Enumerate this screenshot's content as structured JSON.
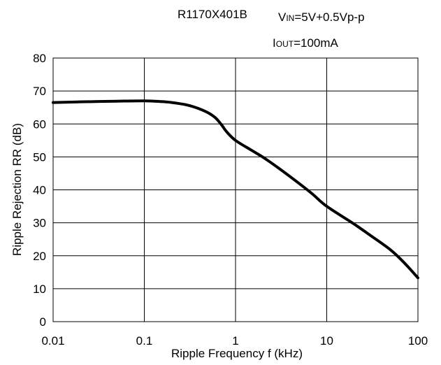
{
  "chart_data": {
    "type": "line",
    "x_scale": "log",
    "xlim": [
      0.01,
      100
    ],
    "ylim": [
      0,
      80
    ],
    "grid": true,
    "xlabel": "Ripple Frequency f (kHz)",
    "ylabel": "Ripple Rejection RR (dB)",
    "x_ticks": [
      0.01,
      0.1,
      1,
      10,
      100
    ],
    "x_tick_labels": [
      "0.01",
      "0.1",
      "1",
      "10",
      "100"
    ],
    "y_ticks": [
      0,
      10,
      20,
      30,
      40,
      50,
      60,
      70,
      80
    ],
    "y_tick_labels": [
      "0",
      "10",
      "20",
      "30",
      "40",
      "50",
      "60",
      "70",
      "80"
    ],
    "annotations": {
      "part_number": "R1170X401B",
      "vin_symbol": "V",
      "vin_subscript": "IN",
      "vin_value": "=5V+0.5Vp-p",
      "iout_symbol": "I",
      "iout_subscript": "OUT",
      "iout_value": "=100mA"
    },
    "series": [
      {
        "color": "#000000",
        "x": [
          0.01,
          0.02,
          0.05,
          0.1,
          0.15,
          0.2,
          0.3,
          0.4,
          0.5,
          0.6,
          0.7,
          0.8,
          1,
          1.5,
          2,
          3,
          5,
          7,
          10,
          20,
          30,
          50,
          70,
          100
        ],
        "y": [
          66.5,
          66.7,
          66.9,
          67.0,
          66.8,
          66.5,
          65.7,
          64.6,
          63.4,
          61.9,
          59.8,
          57.6,
          55.0,
          52.0,
          49.9,
          46.5,
          41.9,
          38.7,
          35.0,
          29.6,
          26.2,
          21.8,
          18.0,
          13.3
        ]
      }
    ]
  }
}
